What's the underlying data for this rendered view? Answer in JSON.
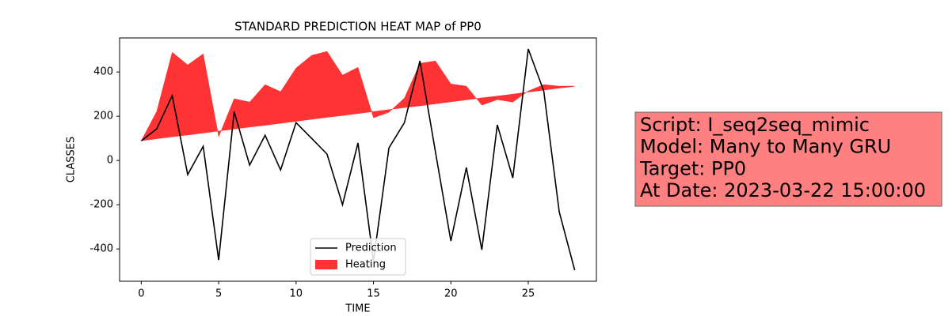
{
  "chart_data": {
    "type": "line",
    "title": "STANDARD PREDICTION HEAT MAP of PP0",
    "x_label": "TIME",
    "y_label": "CLASSES",
    "x": [
      0,
      1,
      2,
      3,
      4,
      5,
      6,
      7,
      8,
      9,
      10,
      11,
      12,
      13,
      14,
      15,
      16,
      17,
      18,
      19,
      20,
      21,
      22,
      23,
      24,
      25,
      26,
      27,
      28
    ],
    "series": [
      {
        "name": "Prediction",
        "color": "#000000",
        "values": [
          89,
          143,
          293,
          -64,
          64,
          -450,
          221,
          -21,
          114,
          -43,
          171,
          100,
          29,
          -200,
          79,
          -454,
          57,
          171,
          450,
          40,
          -364,
          -32,
          -404,
          161,
          -79,
          504,
          314,
          -232,
          -496
        ]
      },
      {
        "name": "Heating",
        "color": "#ff3333",
        "kind": "area",
        "values": [
          89,
          222,
          489,
          432,
          482,
          107,
          279,
          264,
          343,
          311,
          418,
          475,
          493,
          386,
          421,
          193,
          218,
          282,
          439,
          450,
          346,
          336,
          250,
          275,
          264,
          314,
          343,
          336,
          336
        ],
        "lower": [
          89,
          98,
          107,
          115,
          124,
          133,
          142,
          151,
          159,
          168,
          177,
          186,
          195,
          203,
          212,
          221,
          230,
          239,
          247,
          256,
          265,
          274,
          283,
          291,
          300,
          309,
          318,
          327,
          335
        ]
      }
    ],
    "xlim": [
      -1.4,
      29.4
    ],
    "xticks": [
      0,
      5,
      10,
      15,
      20,
      25
    ],
    "ylim": [
      -546,
      554
    ],
    "yticks": [
      -400,
      -200,
      0,
      200,
      400
    ],
    "legend": "lower center",
    "annotation": [
      "Script: I_seq2seq_mimic",
      "Model: Many to Many GRU",
      "Target: PP0",
      "At Date: 2023-03-22 15:00:00"
    ]
  }
}
